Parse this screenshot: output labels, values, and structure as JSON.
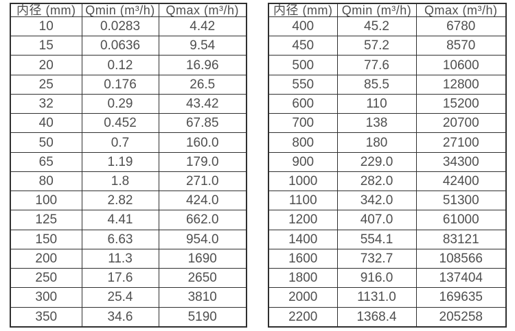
{
  "colors": {
    "border": "#2f2f2f",
    "text": "#4f4f4f",
    "background": "#ffffff"
  },
  "tables": [
    {
      "name": "flow-spec-small-diameters",
      "headers": [
        "内径 (mm)",
        "Qmin (m³/h)",
        "Qmax (m³/h)"
      ],
      "rows": [
        [
          "10",
          "0.0283",
          "4.42"
        ],
        [
          "15",
          "0.0636",
          "9.54"
        ],
        [
          "20",
          "0.12",
          "16.96"
        ],
        [
          "25",
          "0.176",
          "26.5"
        ],
        [
          "32",
          "0.29",
          "43.42"
        ],
        [
          "40",
          "0.452",
          "67.85"
        ],
        [
          "50",
          "0.7",
          "160.0"
        ],
        [
          "65",
          "1.19",
          "179.0"
        ],
        [
          "80",
          "1.8",
          "271.0"
        ],
        [
          "100",
          "2.82",
          "424.0"
        ],
        [
          "125",
          "4.41",
          "662.0"
        ],
        [
          "150",
          "6.63",
          "954.0"
        ],
        [
          "200",
          "11.3",
          "1690"
        ],
        [
          "250",
          "17.6",
          "2650"
        ],
        [
          "300",
          "25.4",
          "3810"
        ],
        [
          "350",
          "34.6",
          "5190"
        ]
      ]
    },
    {
      "name": "flow-spec-large-diameters",
      "headers": [
        "内径 (mm)",
        "Qmin (m³/h)",
        "Qmax (m³/h)"
      ],
      "rows": [
        [
          "400",
          "45.2",
          "6780"
        ],
        [
          "450",
          "57.2",
          "8570"
        ],
        [
          "500",
          "77.6",
          "10600"
        ],
        [
          "550",
          "85.5",
          "12800"
        ],
        [
          "600",
          "110",
          "15200"
        ],
        [
          "700",
          "138",
          "20700"
        ],
        [
          "800",
          "180",
          "27100"
        ],
        [
          "900",
          "229.0",
          "34300"
        ],
        [
          "1000",
          "282.0",
          "42400"
        ],
        [
          "1100",
          "342.0",
          "51300"
        ],
        [
          "1200",
          "407.0",
          "61000"
        ],
        [
          "1400",
          "554.1",
          "83121"
        ],
        [
          "1600",
          "732.7",
          "108566"
        ],
        [
          "1800",
          "916.0",
          "137404"
        ],
        [
          "2000",
          "1131.0",
          "169635"
        ],
        [
          "2200",
          "1368.4",
          "205258"
        ]
      ]
    }
  ],
  "chart_data": {
    "type": "table",
    "title": "",
    "tables": [
      {
        "columns": [
          "内径 (mm)",
          "Qmin (m³/h)",
          "Qmax (m³/h)"
        ],
        "inner_diameter_mm": [
          10,
          15,
          20,
          25,
          32,
          40,
          50,
          65,
          80,
          100,
          125,
          150,
          200,
          250,
          300,
          350
        ],
        "qmin_m3h": [
          0.0283,
          0.0636,
          0.12,
          0.176,
          0.29,
          0.452,
          0.7,
          1.19,
          1.8,
          2.82,
          4.41,
          6.63,
          11.3,
          17.6,
          25.4,
          34.6
        ],
        "qmax_m3h": [
          4.42,
          9.54,
          16.96,
          26.5,
          43.42,
          67.85,
          160.0,
          179.0,
          271.0,
          424.0,
          662.0,
          954.0,
          1690,
          2650,
          3810,
          5190
        ]
      },
      {
        "columns": [
          "内径 (mm)",
          "Qmin (m³/h)",
          "Qmax (m³/h)"
        ],
        "inner_diameter_mm": [
          400,
          450,
          500,
          550,
          600,
          700,
          800,
          900,
          1000,
          1100,
          1200,
          1400,
          1600,
          1800,
          2000,
          2200
        ],
        "qmin_m3h": [
          45.2,
          57.2,
          77.6,
          85.5,
          110,
          138,
          180,
          229.0,
          282.0,
          342.0,
          407.0,
          554.1,
          732.7,
          916.0,
          1131.0,
          1368.4
        ],
        "qmax_m3h": [
          6780,
          8570,
          10600,
          12800,
          15200,
          20700,
          27100,
          34300,
          42400,
          51300,
          61000,
          83121,
          108566,
          137404,
          169635,
          205258
        ]
      }
    ]
  }
}
